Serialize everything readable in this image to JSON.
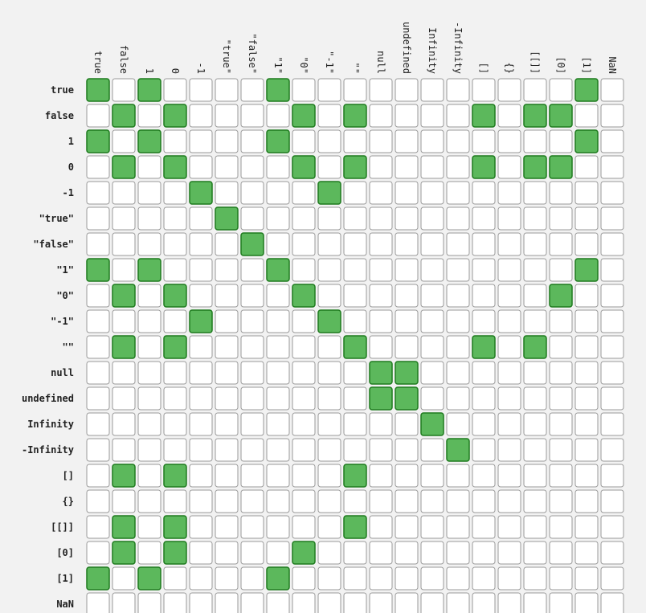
{
  "chart_data": {
    "type": "heatmap",
    "title": "",
    "xlabel": "",
    "ylabel": "",
    "colors": {
      "on_fill": "#5cb85c",
      "on_stroke": "#1e7a1e",
      "off_fill": "#ffffff",
      "off_stroke": "#9a9a9a",
      "background": "#f2f2f2"
    },
    "columns": [
      "true",
      "false",
      "1",
      "0",
      "-1",
      "\"true\"",
      "\"false\"",
      "\"1\"",
      "\"0\"",
      "\"-1\"",
      "\"\"",
      "null",
      "undefined",
      "Infinity",
      "-Infinity",
      "[]",
      "{}",
      "[[]]",
      "[0]",
      "[1]",
      "NaN"
    ],
    "rows": [
      "true",
      "false",
      "1",
      "0",
      "-1",
      "\"true\"",
      "\"false\"",
      "\"1\"",
      "\"0\"",
      "\"-1\"",
      "\"\"",
      "null",
      "undefined",
      "Infinity",
      "-Infinity",
      "[]",
      "{}",
      "[[]]",
      "[0]",
      "[1]",
      "NaN"
    ],
    "matrix": [
      [
        1,
        0,
        1,
        0,
        0,
        0,
        0,
        1,
        0,
        0,
        0,
        0,
        0,
        0,
        0,
        0,
        0,
        0,
        0,
        1,
        0
      ],
      [
        0,
        1,
        0,
        1,
        0,
        0,
        0,
        0,
        1,
        0,
        1,
        0,
        0,
        0,
        0,
        1,
        0,
        1,
        1,
        0,
        0
      ],
      [
        1,
        0,
        1,
        0,
        0,
        0,
        0,
        1,
        0,
        0,
        0,
        0,
        0,
        0,
        0,
        0,
        0,
        0,
        0,
        1,
        0
      ],
      [
        0,
        1,
        0,
        1,
        0,
        0,
        0,
        0,
        1,
        0,
        1,
        0,
        0,
        0,
        0,
        1,
        0,
        1,
        1,
        0,
        0
      ],
      [
        0,
        0,
        0,
        0,
        1,
        0,
        0,
        0,
        0,
        1,
        0,
        0,
        0,
        0,
        0,
        0,
        0,
        0,
        0,
        0,
        0
      ],
      [
        0,
        0,
        0,
        0,
        0,
        1,
        0,
        0,
        0,
        0,
        0,
        0,
        0,
        0,
        0,
        0,
        0,
        0,
        0,
        0,
        0
      ],
      [
        0,
        0,
        0,
        0,
        0,
        0,
        1,
        0,
        0,
        0,
        0,
        0,
        0,
        0,
        0,
        0,
        0,
        0,
        0,
        0,
        0
      ],
      [
        1,
        0,
        1,
        0,
        0,
        0,
        0,
        1,
        0,
        0,
        0,
        0,
        0,
        0,
        0,
        0,
        0,
        0,
        0,
        1,
        0
      ],
      [
        0,
        1,
        0,
        1,
        0,
        0,
        0,
        0,
        1,
        0,
        0,
        0,
        0,
        0,
        0,
        0,
        0,
        0,
        1,
        0,
        0
      ],
      [
        0,
        0,
        0,
        0,
        1,
        0,
        0,
        0,
        0,
        1,
        0,
        0,
        0,
        0,
        0,
        0,
        0,
        0,
        0,
        0,
        0
      ],
      [
        0,
        1,
        0,
        1,
        0,
        0,
        0,
        0,
        0,
        0,
        1,
        0,
        0,
        0,
        0,
        1,
        0,
        1,
        0,
        0,
        0
      ],
      [
        0,
        0,
        0,
        0,
        0,
        0,
        0,
        0,
        0,
        0,
        0,
        1,
        1,
        0,
        0,
        0,
        0,
        0,
        0,
        0,
        0
      ],
      [
        0,
        0,
        0,
        0,
        0,
        0,
        0,
        0,
        0,
        0,
        0,
        1,
        1,
        0,
        0,
        0,
        0,
        0,
        0,
        0,
        0
      ],
      [
        0,
        0,
        0,
        0,
        0,
        0,
        0,
        0,
        0,
        0,
        0,
        0,
        0,
        1,
        0,
        0,
        0,
        0,
        0,
        0,
        0
      ],
      [
        0,
        0,
        0,
        0,
        0,
        0,
        0,
        0,
        0,
        0,
        0,
        0,
        0,
        0,
        1,
        0,
        0,
        0,
        0,
        0,
        0
      ],
      [
        0,
        1,
        0,
        1,
        0,
        0,
        0,
        0,
        0,
        0,
        1,
        0,
        0,
        0,
        0,
        0,
        0,
        0,
        0,
        0,
        0
      ],
      [
        0,
        0,
        0,
        0,
        0,
        0,
        0,
        0,
        0,
        0,
        0,
        0,
        0,
        0,
        0,
        0,
        0,
        0,
        0,
        0,
        0
      ],
      [
        0,
        1,
        0,
        1,
        0,
        0,
        0,
        0,
        0,
        0,
        1,
        0,
        0,
        0,
        0,
        0,
        0,
        0,
        0,
        0,
        0
      ],
      [
        0,
        1,
        0,
        1,
        0,
        0,
        0,
        0,
        1,
        0,
        0,
        0,
        0,
        0,
        0,
        0,
        0,
        0,
        0,
        0,
        0
      ],
      [
        1,
        0,
        1,
        0,
        0,
        0,
        0,
        1,
        0,
        0,
        0,
        0,
        0,
        0,
        0,
        0,
        0,
        0,
        0,
        0,
        0
      ],
      [
        0,
        0,
        0,
        0,
        0,
        0,
        0,
        0,
        0,
        0,
        0,
        0,
        0,
        0,
        0,
        0,
        0,
        0,
        0,
        0,
        0
      ]
    ]
  }
}
